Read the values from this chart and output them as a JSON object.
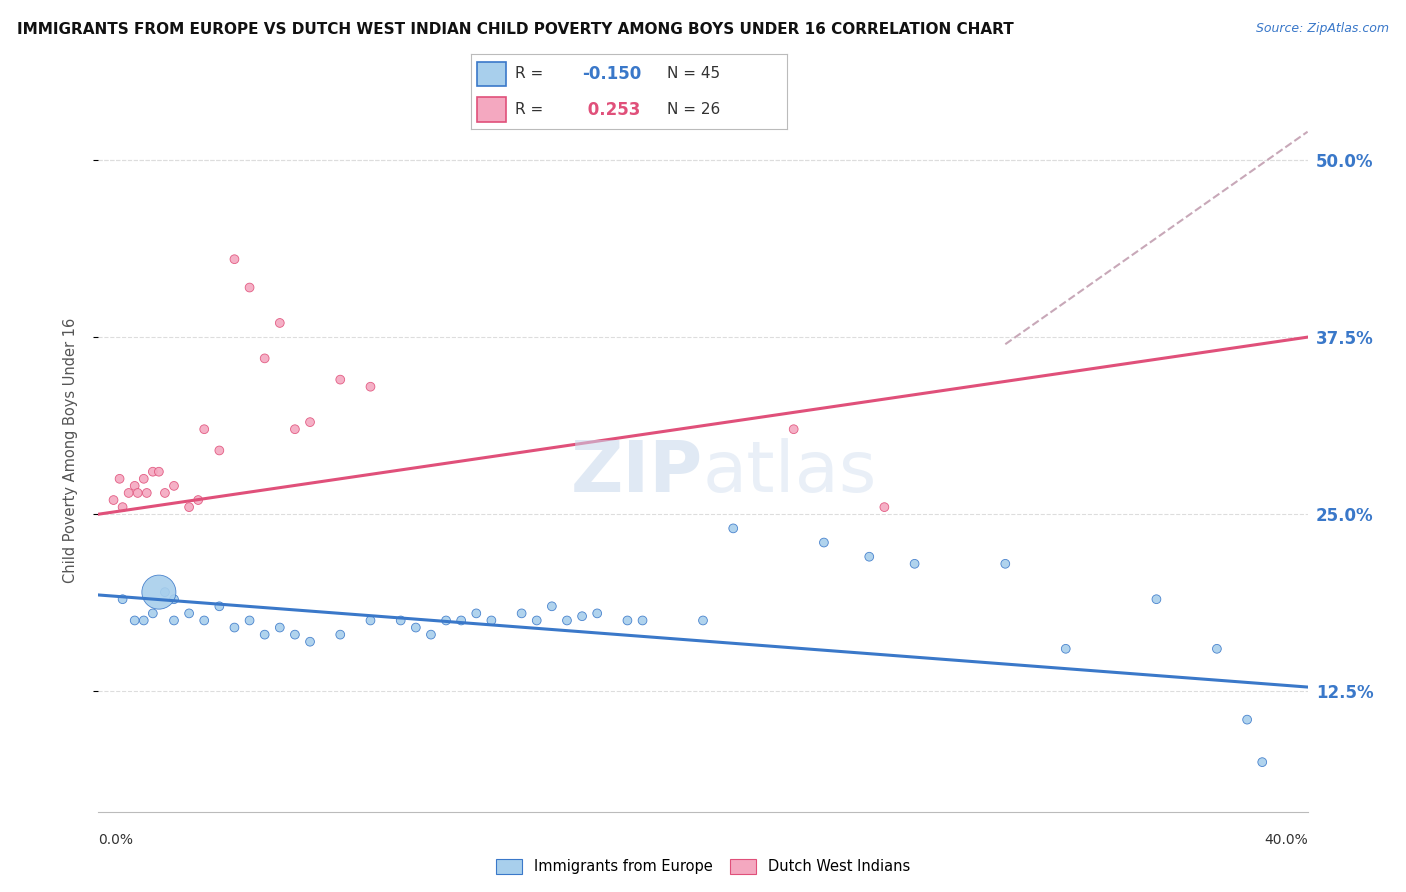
{
  "title": "IMMIGRANTS FROM EUROPE VS DUTCH WEST INDIAN CHILD POVERTY AMONG BOYS UNDER 16 CORRELATION CHART",
  "source": "Source: ZipAtlas.com",
  "ylabel": "Child Poverty Among Boys Under 16",
  "ylabel_ticks": [
    "12.5%",
    "25.0%",
    "37.5%",
    "50.0%"
  ],
  "ylabel_tick_vals": [
    0.125,
    0.25,
    0.375,
    0.5
  ],
  "xlim": [
    0.0,
    0.4
  ],
  "ylim": [
    0.04,
    0.55
  ],
  "blue_color": "#A8CFEC",
  "pink_color": "#F4A8C0",
  "blue_line_color": "#3A78C9",
  "pink_line_color": "#E0507A",
  "trend_line_color_dashed": "#C8A8B8",
  "background_color": "#FFFFFF",
  "blue_scatter": [
    [
      0.008,
      0.19
    ],
    [
      0.012,
      0.175
    ],
    [
      0.015,
      0.175
    ],
    [
      0.018,
      0.18
    ],
    [
      0.022,
      0.195
    ],
    [
      0.025,
      0.19
    ],
    [
      0.025,
      0.175
    ],
    [
      0.03,
      0.18
    ],
    [
      0.035,
      0.175
    ],
    [
      0.04,
      0.185
    ],
    [
      0.045,
      0.17
    ],
    [
      0.05,
      0.175
    ],
    [
      0.055,
      0.165
    ],
    [
      0.06,
      0.17
    ],
    [
      0.065,
      0.165
    ],
    [
      0.07,
      0.16
    ],
    [
      0.08,
      0.165
    ],
    [
      0.09,
      0.175
    ],
    [
      0.1,
      0.175
    ],
    [
      0.105,
      0.17
    ],
    [
      0.11,
      0.165
    ],
    [
      0.115,
      0.175
    ],
    [
      0.12,
      0.175
    ],
    [
      0.125,
      0.18
    ],
    [
      0.13,
      0.175
    ],
    [
      0.14,
      0.18
    ],
    [
      0.145,
      0.175
    ],
    [
      0.15,
      0.185
    ],
    [
      0.155,
      0.175
    ],
    [
      0.16,
      0.178
    ],
    [
      0.165,
      0.18
    ],
    [
      0.175,
      0.175
    ],
    [
      0.18,
      0.175
    ],
    [
      0.2,
      0.175
    ],
    [
      0.21,
      0.24
    ],
    [
      0.24,
      0.23
    ],
    [
      0.255,
      0.22
    ],
    [
      0.27,
      0.215
    ],
    [
      0.3,
      0.215
    ],
    [
      0.32,
      0.155
    ],
    [
      0.35,
      0.19
    ],
    [
      0.37,
      0.155
    ],
    [
      0.38,
      0.105
    ],
    [
      0.385,
      0.075
    ],
    [
      0.02,
      0.195
    ]
  ],
  "blue_sizes": [
    40,
    40,
    40,
    40,
    40,
    40,
    40,
    40,
    40,
    40,
    40,
    40,
    40,
    40,
    40,
    40,
    40,
    40,
    40,
    40,
    40,
    40,
    40,
    40,
    40,
    40,
    40,
    40,
    40,
    40,
    40,
    40,
    40,
    40,
    40,
    40,
    40,
    40,
    40,
    40,
    40,
    40,
    40,
    40,
    600
  ],
  "pink_scatter": [
    [
      0.005,
      0.26
    ],
    [
      0.007,
      0.275
    ],
    [
      0.008,
      0.255
    ],
    [
      0.01,
      0.265
    ],
    [
      0.012,
      0.27
    ],
    [
      0.013,
      0.265
    ],
    [
      0.015,
      0.275
    ],
    [
      0.016,
      0.265
    ],
    [
      0.018,
      0.28
    ],
    [
      0.02,
      0.28
    ],
    [
      0.022,
      0.265
    ],
    [
      0.025,
      0.27
    ],
    [
      0.03,
      0.255
    ],
    [
      0.033,
      0.26
    ],
    [
      0.035,
      0.31
    ],
    [
      0.04,
      0.295
    ],
    [
      0.045,
      0.43
    ],
    [
      0.05,
      0.41
    ],
    [
      0.055,
      0.36
    ],
    [
      0.06,
      0.385
    ],
    [
      0.065,
      0.31
    ],
    [
      0.07,
      0.315
    ],
    [
      0.08,
      0.345
    ],
    [
      0.09,
      0.34
    ],
    [
      0.23,
      0.31
    ],
    [
      0.26,
      0.255
    ]
  ],
  "pink_sizes": [
    40,
    40,
    40,
    40,
    40,
    40,
    40,
    40,
    40,
    40,
    40,
    40,
    40,
    40,
    40,
    40,
    40,
    40,
    40,
    40,
    40,
    40,
    40,
    40,
    40,
    40
  ],
  "blue_trend_x": [
    0.0,
    0.4
  ],
  "blue_trend_y": [
    0.193,
    0.128
  ],
  "pink_trend_x": [
    0.0,
    0.4
  ],
  "pink_trend_y": [
    0.25,
    0.375
  ],
  "gray_trend_x": [
    0.3,
    0.4
  ],
  "gray_trend_y": [
    0.37,
    0.52
  ],
  "legend_R_blue": "R = -0.150",
  "legend_N_blue": "N = 45",
  "legend_R_pink": "R =  0.253",
  "legend_N_pink": "N = 26"
}
